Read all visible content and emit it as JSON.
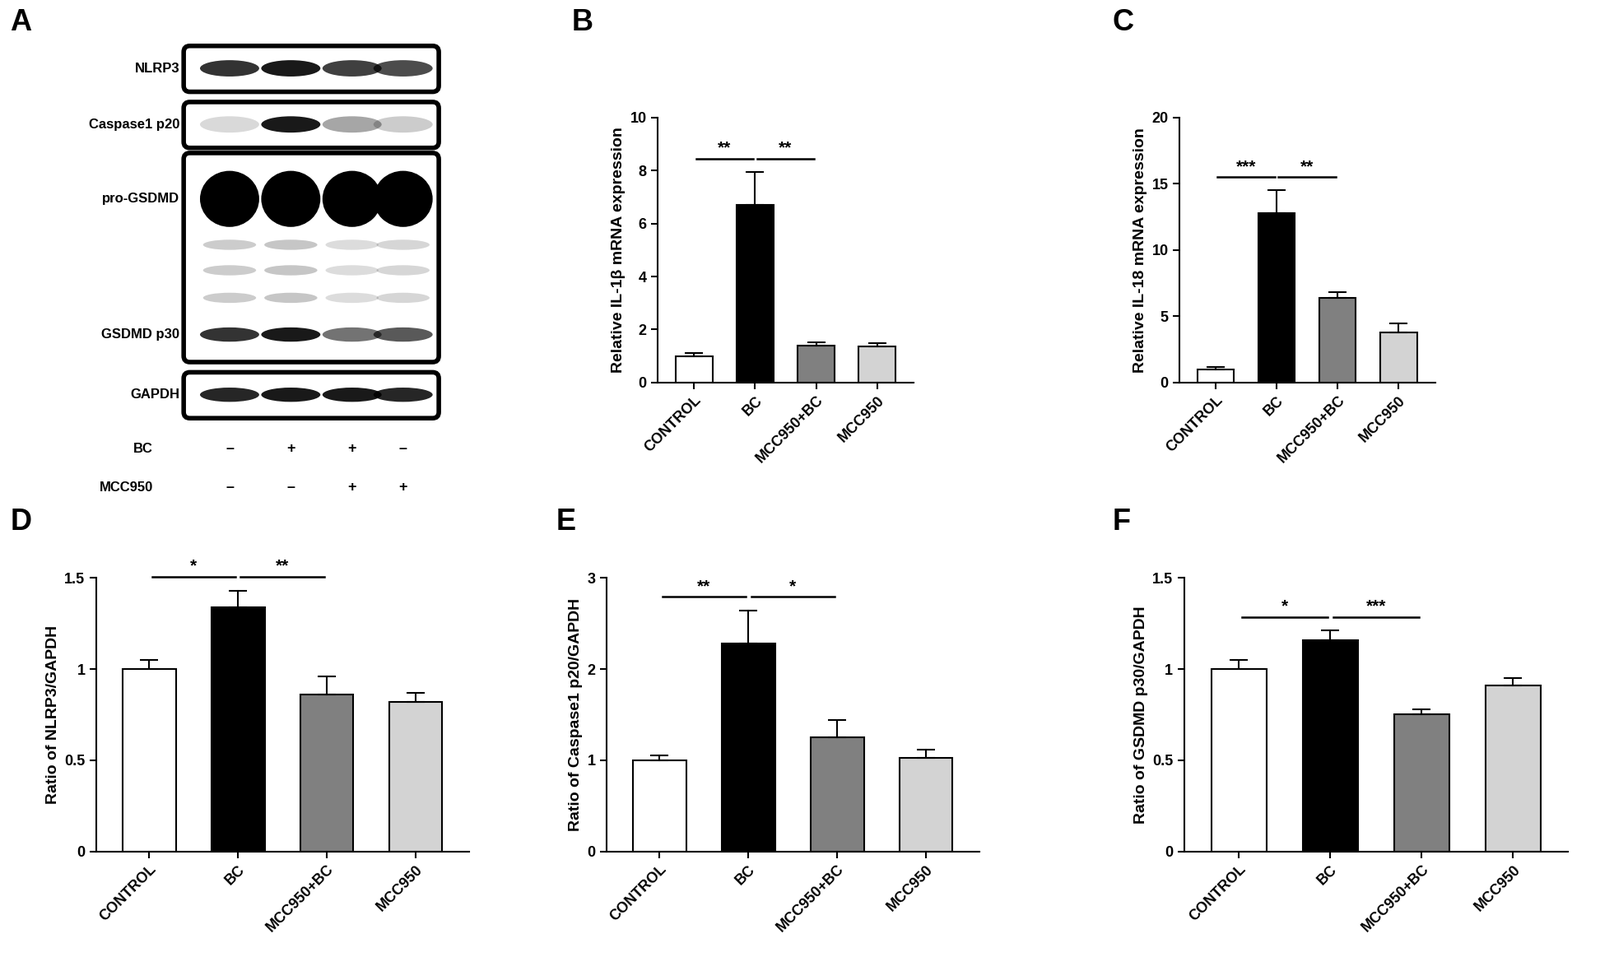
{
  "blot": {
    "panel": "A",
    "rows": [
      {
        "label": "NLRP3",
        "intensity": [
          0.8,
          0.9,
          0.75,
          0.7
        ]
      },
      {
        "label": "Caspase1 p20",
        "intensity": [
          0.15,
          0.9,
          0.35,
          0.2
        ]
      },
      {
        "label": "pro-GSDMD",
        "intensity": [
          1.0,
          1.0,
          1.0,
          1.0
        ]
      },
      {
        "label": "GSDMD p30",
        "intensity": [
          0.8,
          0.9,
          0.55,
          0.65
        ]
      },
      {
        "label": "GAPDH",
        "intensity": [
          0.85,
          0.9,
          0.9,
          0.85
        ]
      }
    ],
    "treatments": [
      {
        "label": "BC",
        "signs": [
          "–",
          "+",
          "+",
          "–"
        ]
      },
      {
        "label": "MCC950",
        "signs": [
          "–",
          "–",
          "+",
          "+"
        ]
      }
    ]
  },
  "chart_data": [
    {
      "panel": "B",
      "type": "bar",
      "y_label": "Relative IL-1β mRNA expression",
      "categories": [
        "CONTROL",
        "BC",
        "MCC950+BC",
        "MCC950"
      ],
      "values": [
        1.0,
        6.7,
        1.4,
        1.35
      ],
      "errors": [
        0.1,
        1.25,
        0.12,
        0.15
      ],
      "colors": [
        "#ffffff",
        "#000000",
        "#808080",
        "#d3d3d3"
      ],
      "ylim": [
        0,
        10
      ],
      "yticks": [
        0,
        2,
        4,
        6,
        8,
        10
      ],
      "annotations": [
        {
          "from": 0,
          "to": 1,
          "label": "**"
        },
        {
          "from": 1,
          "to": 2,
          "label": "**"
        }
      ]
    },
    {
      "panel": "C",
      "type": "bar",
      "y_label": "Relative IL-18 mRNA expression",
      "categories": [
        "CONTROL",
        "BC",
        "MCC950+BC",
        "MCC950"
      ],
      "values": [
        1.0,
        12.8,
        6.4,
        3.8
      ],
      "errors": [
        0.15,
        1.7,
        0.45,
        0.65
      ],
      "colors": [
        "#ffffff",
        "#000000",
        "#808080",
        "#d3d3d3"
      ],
      "ylim": [
        0,
        20
      ],
      "yticks": [
        0,
        5,
        10,
        15,
        20
      ],
      "annotations": [
        {
          "from": 0,
          "to": 1,
          "label": "***"
        },
        {
          "from": 1,
          "to": 2,
          "label": "**"
        }
      ]
    },
    {
      "panel": "D",
      "type": "bar",
      "y_label": "Ratio of NLRP3/GAPDH",
      "categories": [
        "CONTROL",
        "BC",
        "MCC950+BC",
        "MCC950"
      ],
      "values": [
        1.0,
        1.34,
        0.86,
        0.82
      ],
      "errors": [
        0.05,
        0.09,
        0.1,
        0.05
      ],
      "colors": [
        "#ffffff",
        "#000000",
        "#808080",
        "#d3d3d3"
      ],
      "ylim": [
        0,
        1.5
      ],
      "yticks": [
        0,
        0.5,
        1,
        1.5
      ],
      "annotations": [
        {
          "from": 0,
          "to": 1,
          "label": "*"
        },
        {
          "from": 1,
          "to": 2,
          "label": "**"
        }
      ]
    },
    {
      "panel": "E",
      "type": "bar",
      "y_label": "Ratio of Caspase1 p20/GAPDH",
      "categories": [
        "CONTROL",
        "BC",
        "MCC950+BC",
        "MCC950"
      ],
      "values": [
        1.0,
        2.28,
        1.25,
        1.03
      ],
      "errors": [
        0.05,
        0.36,
        0.19,
        0.09
      ],
      "colors": [
        "#ffffff",
        "#000000",
        "#808080",
        "#d3d3d3"
      ],
      "ylim": [
        0,
        3
      ],
      "yticks": [
        0,
        1,
        2,
        3
      ],
      "annotations": [
        {
          "from": 0,
          "to": 1,
          "label": "**"
        },
        {
          "from": 1,
          "to": 2,
          "label": "*"
        }
      ]
    },
    {
      "panel": "F",
      "type": "bar",
      "y_label": "Ratio of GSDMD p30/GAPDH",
      "categories": [
        "CONTROL",
        "BC",
        "MCC950+BC",
        "MCC950"
      ],
      "values": [
        1.0,
        1.16,
        0.75,
        0.91
      ],
      "errors": [
        0.05,
        0.05,
        0.03,
        0.04
      ],
      "colors": [
        "#ffffff",
        "#000000",
        "#808080",
        "#d3d3d3"
      ],
      "ylim": [
        0,
        1.5
      ],
      "yticks": [
        0,
        0.5,
        1,
        1.5
      ],
      "annotations": [
        {
          "from": 0,
          "to": 1,
          "label": "*"
        },
        {
          "from": 1,
          "to": 2,
          "label": "***"
        }
      ]
    }
  ]
}
